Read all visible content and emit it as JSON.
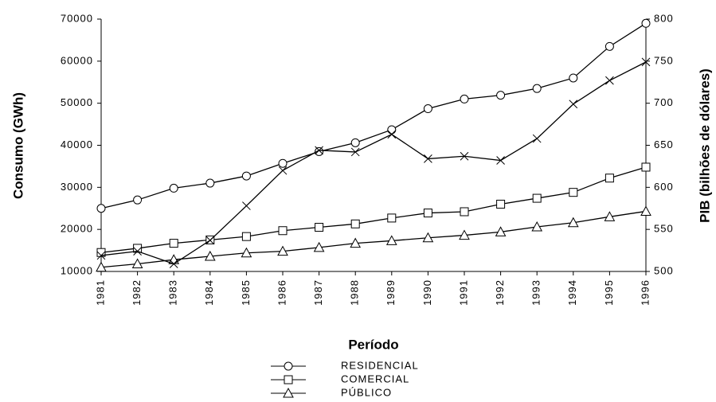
{
  "chart_data": {
    "type": "line",
    "ylabel": "Consumo (GWh)",
    "y2label": "PIB (bilhões de dólares)",
    "xlabel": "Período",
    "categories": [
      "1981",
      "1982",
      "1983",
      "1984",
      "1985",
      "1986",
      "1987",
      "1988",
      "1989",
      "1990",
      "1991",
      "1992",
      "1993",
      "1994",
      "1995",
      "1996"
    ],
    "ylim": [
      10000,
      70000
    ],
    "yticks": [
      10000,
      20000,
      30000,
      40000,
      50000,
      60000,
      70000
    ],
    "y2lim": [
      500,
      800
    ],
    "y2ticks": [
      500,
      550,
      600,
      650,
      700,
      750,
      800
    ],
    "series": [
      {
        "name": "RESIDENCIAL",
        "color": "#000000",
        "marker": "circle",
        "values": [
          25000,
          27000,
          29800,
          31000,
          32700,
          35700,
          38500,
          40600,
          43700,
          48700,
          51000,
          51900,
          53500,
          56000,
          63500,
          69000
        ]
      },
      {
        "name": "COMERCIAL",
        "color": "#000000",
        "marker": "square",
        "values": [
          14500,
          15500,
          16700,
          17500,
          18300,
          19700,
          20500,
          21300,
          22700,
          23900,
          24200,
          26000,
          27400,
          28800,
          32200,
          34800
        ]
      },
      {
        "name": "PÚBLICO",
        "color": "#000000",
        "marker": "triangle",
        "values": [
          11000,
          11800,
          12800,
          13600,
          14400,
          14800,
          15700,
          16700,
          17300,
          18000,
          18600,
          19400,
          20600,
          21600,
          23000,
          24300
        ]
      },
      {
        "color": "#000000",
        "marker": "x",
        "axis": "y2",
        "values": [
          519,
          524,
          509,
          537,
          578,
          620,
          644,
          642,
          663,
          634,
          637,
          632,
          658,
          699,
          727,
          749
        ]
      }
    ]
  }
}
